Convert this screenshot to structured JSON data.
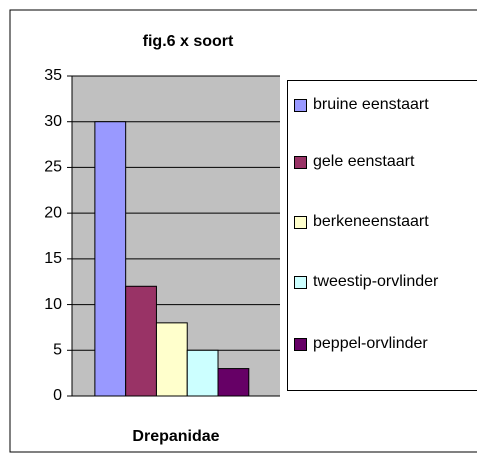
{
  "chart_data": {
    "type": "bar",
    "title": "fig.6  x soort",
    "categories": [
      "Drepanidae"
    ],
    "series": [
      {
        "name": "bruine eenstaart",
        "color": "#9999ff",
        "values": [
          30
        ]
      },
      {
        "name": "gele eenstaart",
        "color": "#993366",
        "values": [
          12
        ]
      },
      {
        "name": "berkeneenstaart",
        "color": "#ffffcc",
        "values": [
          8
        ]
      },
      {
        "name": "tweestip-orvlinder",
        "color": "#ccffff",
        "values": [
          5
        ]
      },
      {
        "name": "peppel-orvlinder",
        "color": "#660066",
        "values": [
          3
        ]
      }
    ],
    "ylim": [
      0,
      35
    ],
    "yticks": [
      0,
      5,
      10,
      15,
      20,
      25,
      30,
      35
    ],
    "grid": true,
    "legend": "right"
  }
}
